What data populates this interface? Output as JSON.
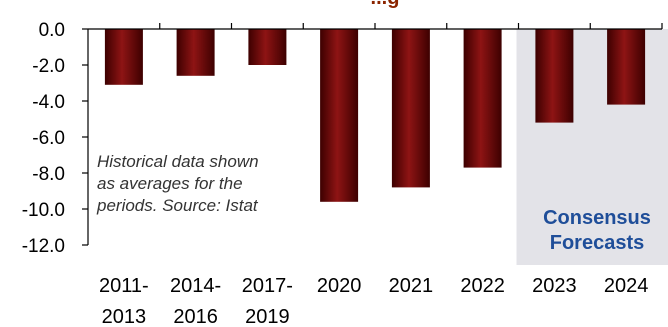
{
  "chart_data": {
    "type": "bar",
    "title": "...g",
    "categories": [
      [
        "2011-",
        "2013"
      ],
      [
        "2014-",
        "2016"
      ],
      [
        "2017-",
        "2019"
      ],
      [
        "2020"
      ],
      [
        "2021"
      ],
      [
        "2022"
      ],
      [
        "2023"
      ],
      [
        "2024"
      ]
    ],
    "values": [
      -3.1,
      -2.6,
      -2.0,
      -9.6,
      -8.8,
      -7.7,
      -5.2,
      -4.2
    ],
    "ylim": [
      -12.0,
      0.0
    ],
    "yticks": [
      "0.0",
      "-2.0",
      "-4.0",
      "-6.0",
      "-8.0",
      "-10.0",
      "-12.0"
    ],
    "ytick_values": [
      0,
      -2,
      -4,
      -6,
      -8,
      -10,
      -12
    ],
    "grid": false,
    "xlabel": "",
    "ylabel": "",
    "annotation": [
      "Historical data shown",
      "as averages for the",
      "periods. Source: Istat"
    ],
    "forecast_label": [
      "Consensus",
      "Forecasts"
    ],
    "forecast_start_index": 6
  },
  "colors": {
    "bar": "#6b0000",
    "bar_highlight": "#9a1a1a",
    "forecast_shade": "#e3e3e8",
    "forecast_text": "#1f4e99",
    "title": "#8b2500"
  }
}
